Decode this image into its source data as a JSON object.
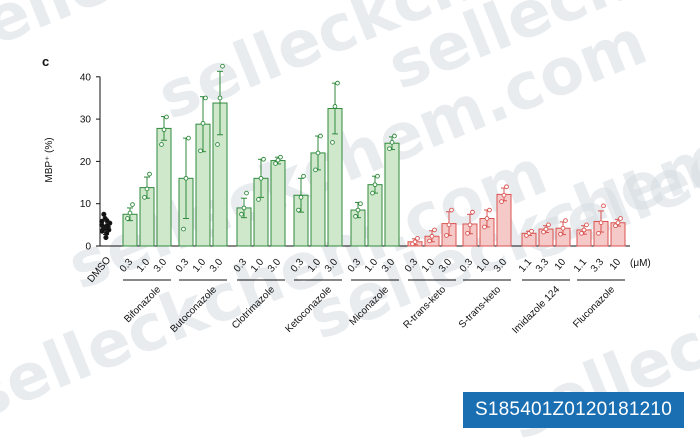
{
  "panel_letter": "c",
  "badge_text": "S185401Z0120181210",
  "watermark_text": "selleckchem.com",
  "colors": {
    "dmso_fill": "#1a1a1a",
    "green_fill": "#cfe8cc",
    "green_stroke": "#2f8a3c",
    "red_fill": "#f6c9c9",
    "red_stroke": "#d9534f",
    "badge_bg": "#1a6fb3"
  },
  "chart_data": {
    "type": "bar",
    "ylabel": "MBP⁺ (%)",
    "ylim": [
      0,
      40
    ],
    "yticks": [
      0,
      10,
      20,
      30,
      40
    ],
    "unit_label": "(μM)",
    "grid": false,
    "groups": [
      {
        "name": "DMSO",
        "color": "black",
        "bars": [
          {
            "dose": "",
            "mean": 4.5,
            "err": 1.8,
            "points": [
              2.0,
              3.0,
              3.5,
              4.0,
              4.2,
              4.6,
              5.0,
              5.4,
              6.0,
              6.5,
              7.5,
              3.8,
              4.8,
              5.8
            ]
          }
        ]
      },
      {
        "name": "Bifonazole",
        "color": "green",
        "bars": [
          {
            "dose": "0.3",
            "mean": 7.5,
            "err": 1.5,
            "points": [
              6.5,
              7.8,
              9.8
            ]
          },
          {
            "dose": "1.0",
            "mean": 13.8,
            "err": 2.5,
            "points": [
              11.5,
              13.5,
              17.0
            ]
          },
          {
            "dose": "3.0",
            "mean": 27.8,
            "err": 2.8,
            "points": [
              24.0,
              27.5,
              30.5
            ]
          }
        ]
      },
      {
        "name": "Butoconazole",
        "color": "green",
        "bars": [
          {
            "dose": "0.3",
            "mean": 16.0,
            "err": 9.5,
            "points": [
              4.0,
              16.0,
              25.5
            ]
          },
          {
            "dose": "1.0",
            "mean": 28.8,
            "err": 6.5,
            "points": [
              22.5,
              29.0,
              35.0
            ]
          },
          {
            "dose": "3.0",
            "mean": 33.8,
            "err": 7.5,
            "points": [
              24.0,
              35.0,
              42.5
            ]
          }
        ]
      },
      {
        "name": "Clotrimazole",
        "color": "green",
        "bars": [
          {
            "dose": "0.3",
            "mean": 9.0,
            "err": 2.3,
            "points": [
              7.5,
              9.0,
              12.5
            ]
          },
          {
            "dose": "1.0",
            "mean": 16.0,
            "err": 4.5,
            "points": [
              11.0,
              16.0,
              20.5
            ]
          },
          {
            "dose": "3.0",
            "mean": 20.2,
            "err": 0.8,
            "points": [
              19.5,
              20.3,
              21.0
            ]
          }
        ]
      },
      {
        "name": "Ketoconazole",
        "color": "green",
        "bars": [
          {
            "dose": "0.3",
            "mean": 12.0,
            "err": 4.0,
            "points": [
              8.5,
              11.5,
              16.5
            ]
          },
          {
            "dose": "1.0",
            "mean": 22.0,
            "err": 4.0,
            "points": [
              18.0,
              22.0,
              26.0
            ]
          },
          {
            "dose": "3.0",
            "mean": 32.5,
            "err": 6.0,
            "points": [
              24.5,
              33.0,
              38.5
            ]
          }
        ]
      },
      {
        "name": "Miconazole",
        "color": "green",
        "bars": [
          {
            "dose": "0.3",
            "mean": 8.5,
            "err": 1.8,
            "points": [
              7.0,
              8.5,
              10.0
            ]
          },
          {
            "dose": "1.0",
            "mean": 14.5,
            "err": 2.0,
            "points": [
              12.5,
              14.5,
              16.5
            ]
          },
          {
            "dose": "3.0",
            "mean": 24.3,
            "err": 1.5,
            "points": [
              23.0,
              24.5,
              26.0
            ]
          }
        ]
      },
      {
        "name": "R-trans-keto",
        "color": "red",
        "bars": [
          {
            "dose": "0.3",
            "mean": 1.0,
            "err": 0.7,
            "points": [
              0.5,
              1.0,
              1.8
            ]
          },
          {
            "dose": "1.0",
            "mean": 2.3,
            "err": 1.3,
            "points": [
              1.2,
              2.3,
              3.8
            ]
          },
          {
            "dose": "3.0",
            "mean": 5.3,
            "err": 2.8,
            "points": [
              2.5,
              5.0,
              8.5
            ]
          }
        ]
      },
      {
        "name": "S-trans-keto",
        "color": "red",
        "bars": [
          {
            "dose": "0.3",
            "mean": 5.2,
            "err": 2.3,
            "points": [
              3.0,
              5.0,
              8.0
            ]
          },
          {
            "dose": "1.0",
            "mean": 6.5,
            "err": 2.0,
            "points": [
              4.5,
              6.5,
              8.5
            ]
          },
          {
            "dose": "3.0",
            "mean": 12.2,
            "err": 1.5,
            "points": [
              10.5,
              12.0,
              14.0
            ]
          }
        ]
      },
      {
        "name": "Imidazole 124",
        "color": "red",
        "bars": [
          {
            "dose": "1.1",
            "mean": 3.0,
            "err": 0.5,
            "points": [
              2.5,
              3.0,
              3.5
            ]
          },
          {
            "dose": "3.3",
            "mean": 4.0,
            "err": 0.8,
            "points": [
              3.3,
              4.0,
              5.0
            ]
          },
          {
            "dose": "10",
            "mean": 4.2,
            "err": 1.5,
            "points": [
              2.8,
              4.2,
              6.0
            ]
          }
        ]
      },
      {
        "name": "Fluconazole",
        "color": "red",
        "bars": [
          {
            "dose": "1.1",
            "mean": 3.8,
            "err": 1.0,
            "points": [
              3.0,
              3.8,
              5.0
            ]
          },
          {
            "dose": "3.3",
            "mean": 5.8,
            "err": 2.5,
            "points": [
              3.0,
              5.5,
              9.5
            ]
          },
          {
            "dose": "10",
            "mean": 5.5,
            "err": 0.8,
            "points": [
              4.8,
              5.5,
              6.5
            ]
          }
        ]
      }
    ]
  }
}
